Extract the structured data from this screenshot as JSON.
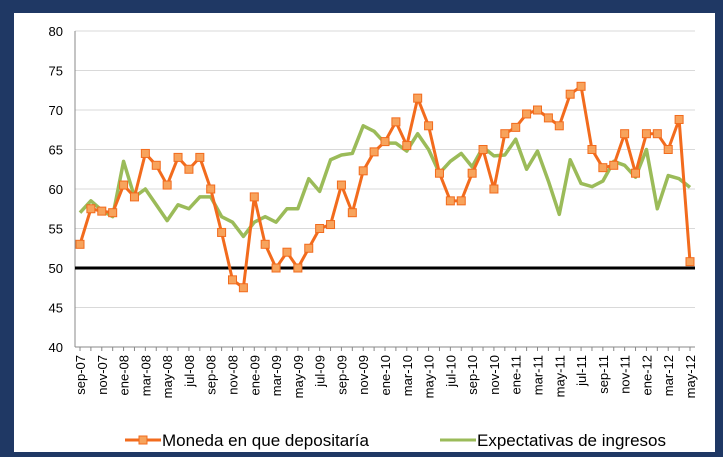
{
  "chart_data": {
    "type": "line",
    "categories": [
      "sep-07",
      null,
      "nov-07",
      null,
      "ene-08",
      null,
      "mar-08",
      null,
      "may-08",
      null,
      "jul-08",
      null,
      "sep-08",
      null,
      "nov-08",
      null,
      "ene-09",
      null,
      "mar-09",
      null,
      "may-09",
      null,
      "jul-09",
      null,
      "sep-09",
      null,
      "nov-09",
      null,
      "ene-10",
      null,
      "mar-10",
      null,
      "may-10",
      null,
      "jul-10",
      null,
      "sep-10",
      null,
      "nov-10",
      null,
      "ene-11",
      null,
      "mar-11",
      null,
      "may-11",
      null,
      "jul-11",
      null,
      "sep-11",
      null,
      "nov-11",
      null,
      "ene-12",
      null,
      "mar-12",
      null,
      "may-12"
    ],
    "series": [
      {
        "name": "Moneda en que depositaría",
        "color": "#f26b1d",
        "marker_fill": "#f7a35c",
        "values": [
          53,
          57.5,
          57.2,
          57,
          60.5,
          59,
          64.5,
          63,
          60.5,
          64,
          62.5,
          64,
          60,
          54.5,
          48.5,
          47.5,
          59,
          53,
          50,
          52,
          50,
          52.5,
          55,
          55.5,
          60.5,
          57,
          62.3,
          64.7,
          66,
          68.5,
          65.5,
          71.5,
          68,
          62,
          58.5,
          58.5,
          62,
          65,
          60,
          67,
          67.8,
          69.5,
          70,
          69,
          68,
          72,
          73,
          65,
          62.7,
          63,
          67,
          62,
          67,
          67,
          65,
          68.8,
          50.8
        ]
      },
      {
        "name": "Expectativas de ingresos",
        "color": "#9bbb59",
        "values": [
          57,
          58.5,
          57.3,
          56.5,
          63.5,
          59,
          60,
          58,
          56,
          58,
          57.5,
          59,
          59,
          56.5,
          55.8,
          54,
          55.8,
          56.5,
          55.8,
          57.5,
          57.5,
          61.3,
          59.7,
          63.7,
          64.3,
          64.5,
          68,
          67.3,
          65.8,
          65.8,
          64.8,
          67,
          65,
          62,
          63.5,
          64.5,
          62.8,
          65.3,
          64.2,
          64.3,
          66.3,
          62.5,
          64.8,
          61,
          56.8,
          63.7,
          60.7,
          60.3,
          61,
          63.5,
          63,
          61.5,
          65,
          57.5,
          61.7,
          61.3,
          60.2
        ]
      }
    ],
    "reference_line": 50,
    "ylim": [
      40,
      80
    ],
    "yticks": [
      40,
      45,
      50,
      55,
      60,
      65,
      70,
      75,
      80
    ],
    "grid": true
  }
}
